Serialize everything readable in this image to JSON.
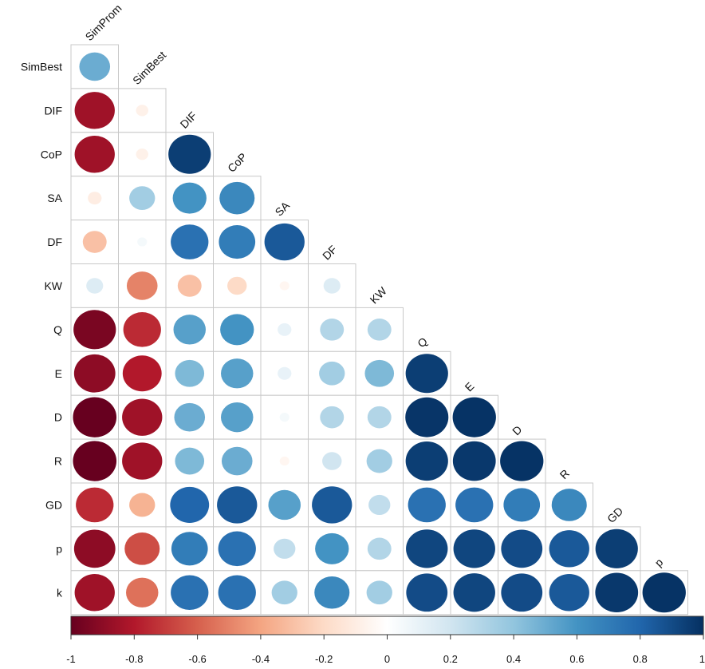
{
  "chart_data": {
    "type": "heatmap",
    "title": "",
    "style": "lower-triangle correlation plot (circles)",
    "columns": [
      "SimProm",
      "SimBest",
      "DIF",
      "CoP",
      "SA",
      "DF",
      "KW",
      "Q",
      "E",
      "D",
      "R",
      "GD",
      "p"
    ],
    "rows": [
      "SimBest",
      "DIF",
      "CoP",
      "SA",
      "DF",
      "KW",
      "Q",
      "E",
      "D",
      "R",
      "GD",
      "p",
      "k"
    ],
    "values": [
      [
        0.5
      ],
      [
        -0.85,
        -0.08
      ],
      [
        -0.85,
        -0.08,
        0.95
      ],
      [
        -0.1,
        0.35,
        0.6,
        0.65
      ],
      [
        -0.3,
        0.05,
        0.75,
        0.7,
        0.85
      ],
      [
        0.15,
        -0.5,
        -0.3,
        -0.2,
        -0.05,
        0.15
      ],
      [
        -0.95,
        -0.75,
        0.55,
        0.6,
        0.1,
        0.3,
        0.3
      ],
      [
        -0.9,
        -0.8,
        0.45,
        0.55,
        0.1,
        0.35,
        0.45,
        0.95
      ],
      [
        -1.0,
        -0.85,
        0.5,
        0.55,
        0.05,
        0.3,
        0.3,
        0.98,
        0.99
      ],
      [
        -1.0,
        -0.85,
        0.45,
        0.5,
        -0.05,
        0.2,
        0.35,
        0.95,
        0.97,
        0.99
      ],
      [
        -0.75,
        -0.35,
        0.8,
        0.85,
        0.55,
        0.85,
        0.25,
        0.75,
        0.75,
        0.7,
        0.65
      ],
      [
        -0.9,
        -0.65,
        0.7,
        0.75,
        0.25,
        0.6,
        0.3,
        0.92,
        0.92,
        0.9,
        0.85,
        0.95
      ],
      [
        -0.85,
        -0.55,
        0.75,
        0.75,
        0.35,
        0.65,
        0.35,
        0.9,
        0.92,
        0.9,
        0.85,
        0.97,
        0.99
      ]
    ],
    "colorbar": {
      "range": [
        -1,
        1
      ],
      "ticks": [
        -1,
        -0.8,
        -0.6,
        -0.4,
        -0.2,
        0,
        0.2,
        0.4,
        0.6,
        0.8,
        1
      ],
      "tick_labels": [
        "-1",
        "-0.8",
        "-0.6",
        "-0.4",
        "-0.2",
        "0",
        "0.2",
        "0.4",
        "0.6",
        "0.8",
        "1"
      ],
      "colors": [
        "#67001f",
        "#b2182b",
        "#d6604d",
        "#f4a582",
        "#fddbc7",
        "#ffffff",
        "#d1e5f0",
        "#92c5de",
        "#4393c3",
        "#2166ac",
        "#053061"
      ]
    }
  }
}
